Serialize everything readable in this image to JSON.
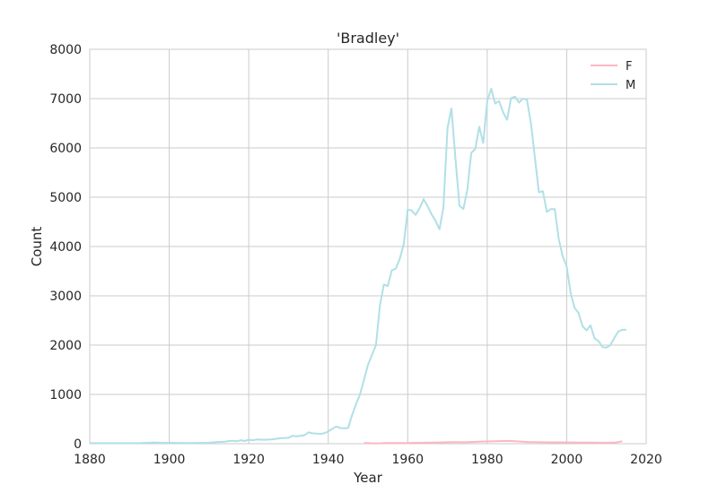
{
  "chart_data": {
    "type": "line",
    "title": "'Bradley'",
    "xlabel": "Year",
    "ylabel": "Count",
    "xlim": [
      1880,
      2020
    ],
    "ylim": [
      0,
      8000
    ],
    "xticks": [
      1880,
      1900,
      1920,
      1940,
      1960,
      1980,
      2000,
      2020
    ],
    "yticks": [
      0,
      1000,
      2000,
      3000,
      4000,
      5000,
      6000,
      7000,
      8000
    ],
    "grid": true,
    "legend_position": "top-right",
    "series": [
      {
        "name": "F",
        "color": "#ffb6c1",
        "points": [
          [
            1949,
            10
          ],
          [
            1950,
            15
          ],
          [
            1951,
            8
          ],
          [
            1953,
            8
          ],
          [
            1954,
            12
          ],
          [
            1955,
            15
          ],
          [
            1956,
            12
          ],
          [
            1958,
            12
          ],
          [
            1960,
            15
          ],
          [
            1962,
            18
          ],
          [
            1964,
            20
          ],
          [
            1966,
            22
          ],
          [
            1968,
            25
          ],
          [
            1970,
            30
          ],
          [
            1972,
            32
          ],
          [
            1974,
            30
          ],
          [
            1976,
            35
          ],
          [
            1978,
            40
          ],
          [
            1980,
            45
          ],
          [
            1982,
            50
          ],
          [
            1984,
            55
          ],
          [
            1986,
            55
          ],
          [
            1988,
            45
          ],
          [
            1990,
            35
          ],
          [
            1992,
            32
          ],
          [
            1994,
            30
          ],
          [
            1996,
            28
          ],
          [
            1998,
            28
          ],
          [
            2000,
            25
          ],
          [
            2002,
            25
          ],
          [
            2004,
            22
          ],
          [
            2006,
            22
          ],
          [
            2008,
            20
          ],
          [
            2010,
            20
          ],
          [
            2012,
            22
          ],
          [
            2014,
            50
          ]
        ]
      },
      {
        "name": "M",
        "color": "#b0e0e6",
        "points": [
          [
            1880,
            10
          ],
          [
            1885,
            10
          ],
          [
            1890,
            10
          ],
          [
            1893,
            12
          ],
          [
            1895,
            20
          ],
          [
            1896,
            25
          ],
          [
            1898,
            20
          ],
          [
            1900,
            18
          ],
          [
            1905,
            15
          ],
          [
            1910,
            20
          ],
          [
            1912,
            35
          ],
          [
            1914,
            40
          ],
          [
            1915,
            55
          ],
          [
            1916,
            60
          ],
          [
            1917,
            50
          ],
          [
            1918,
            70
          ],
          [
            1919,
            55
          ],
          [
            1920,
            80
          ],
          [
            1921,
            70
          ],
          [
            1922,
            85
          ],
          [
            1924,
            80
          ],
          [
            1926,
            90
          ],
          [
            1928,
            110
          ],
          [
            1930,
            120
          ],
          [
            1931,
            160
          ],
          [
            1932,
            150
          ],
          [
            1934,
            170
          ],
          [
            1935,
            230
          ],
          [
            1936,
            210
          ],
          [
            1938,
            200
          ],
          [
            1939,
            210
          ],
          [
            1940,
            250
          ],
          [
            1941,
            300
          ],
          [
            1942,
            350
          ],
          [
            1943,
            320
          ],
          [
            1944,
            310
          ],
          [
            1945,
            320
          ],
          [
            1946,
            580
          ],
          [
            1947,
            800
          ],
          [
            1948,
            1000
          ],
          [
            1949,
            1300
          ],
          [
            1950,
            1600
          ],
          [
            1951,
            1800
          ],
          [
            1952,
            2000
          ],
          [
            1953,
            2800
          ],
          [
            1954,
            3230
          ],
          [
            1955,
            3200
          ],
          [
            1956,
            3520
          ],
          [
            1957,
            3550
          ],
          [
            1958,
            3750
          ],
          [
            1959,
            4050
          ],
          [
            1960,
            4750
          ],
          [
            1961,
            4730
          ],
          [
            1962,
            4640
          ],
          [
            1963,
            4780
          ],
          [
            1964,
            4960
          ],
          [
            1965,
            4820
          ],
          [
            1966,
            4650
          ],
          [
            1967,
            4520
          ],
          [
            1968,
            4350
          ],
          [
            1969,
            4800
          ],
          [
            1970,
            6400
          ],
          [
            1971,
            6800
          ],
          [
            1972,
            5800
          ],
          [
            1973,
            4830
          ],
          [
            1974,
            4760
          ],
          [
            1975,
            5150
          ],
          [
            1976,
            5900
          ],
          [
            1977,
            5980
          ],
          [
            1978,
            6430
          ],
          [
            1979,
            6100
          ],
          [
            1980,
            6950
          ],
          [
            1981,
            7200
          ],
          [
            1982,
            6900
          ],
          [
            1983,
            6950
          ],
          [
            1984,
            6720
          ],
          [
            1985,
            6570
          ],
          [
            1986,
            7010
          ],
          [
            1987,
            7040
          ],
          [
            1988,
            6920
          ],
          [
            1989,
            7000
          ],
          [
            1990,
            6980
          ],
          [
            1991,
            6500
          ],
          [
            1992,
            5800
          ],
          [
            1993,
            5100
          ],
          [
            1994,
            5120
          ],
          [
            1995,
            4700
          ],
          [
            1996,
            4760
          ],
          [
            1997,
            4760
          ],
          [
            1998,
            4150
          ],
          [
            1999,
            3800
          ],
          [
            2000,
            3600
          ],
          [
            2001,
            3050
          ],
          [
            2002,
            2750
          ],
          [
            2003,
            2650
          ],
          [
            2004,
            2380
          ],
          [
            2005,
            2300
          ],
          [
            2006,
            2400
          ],
          [
            2007,
            2140
          ],
          [
            2008,
            2080
          ],
          [
            2009,
            1960
          ],
          [
            2010,
            1950
          ],
          [
            2011,
            2000
          ],
          [
            2012,
            2150
          ],
          [
            2013,
            2280
          ],
          [
            2014,
            2310
          ],
          [
            2015,
            2310
          ]
        ]
      }
    ]
  }
}
